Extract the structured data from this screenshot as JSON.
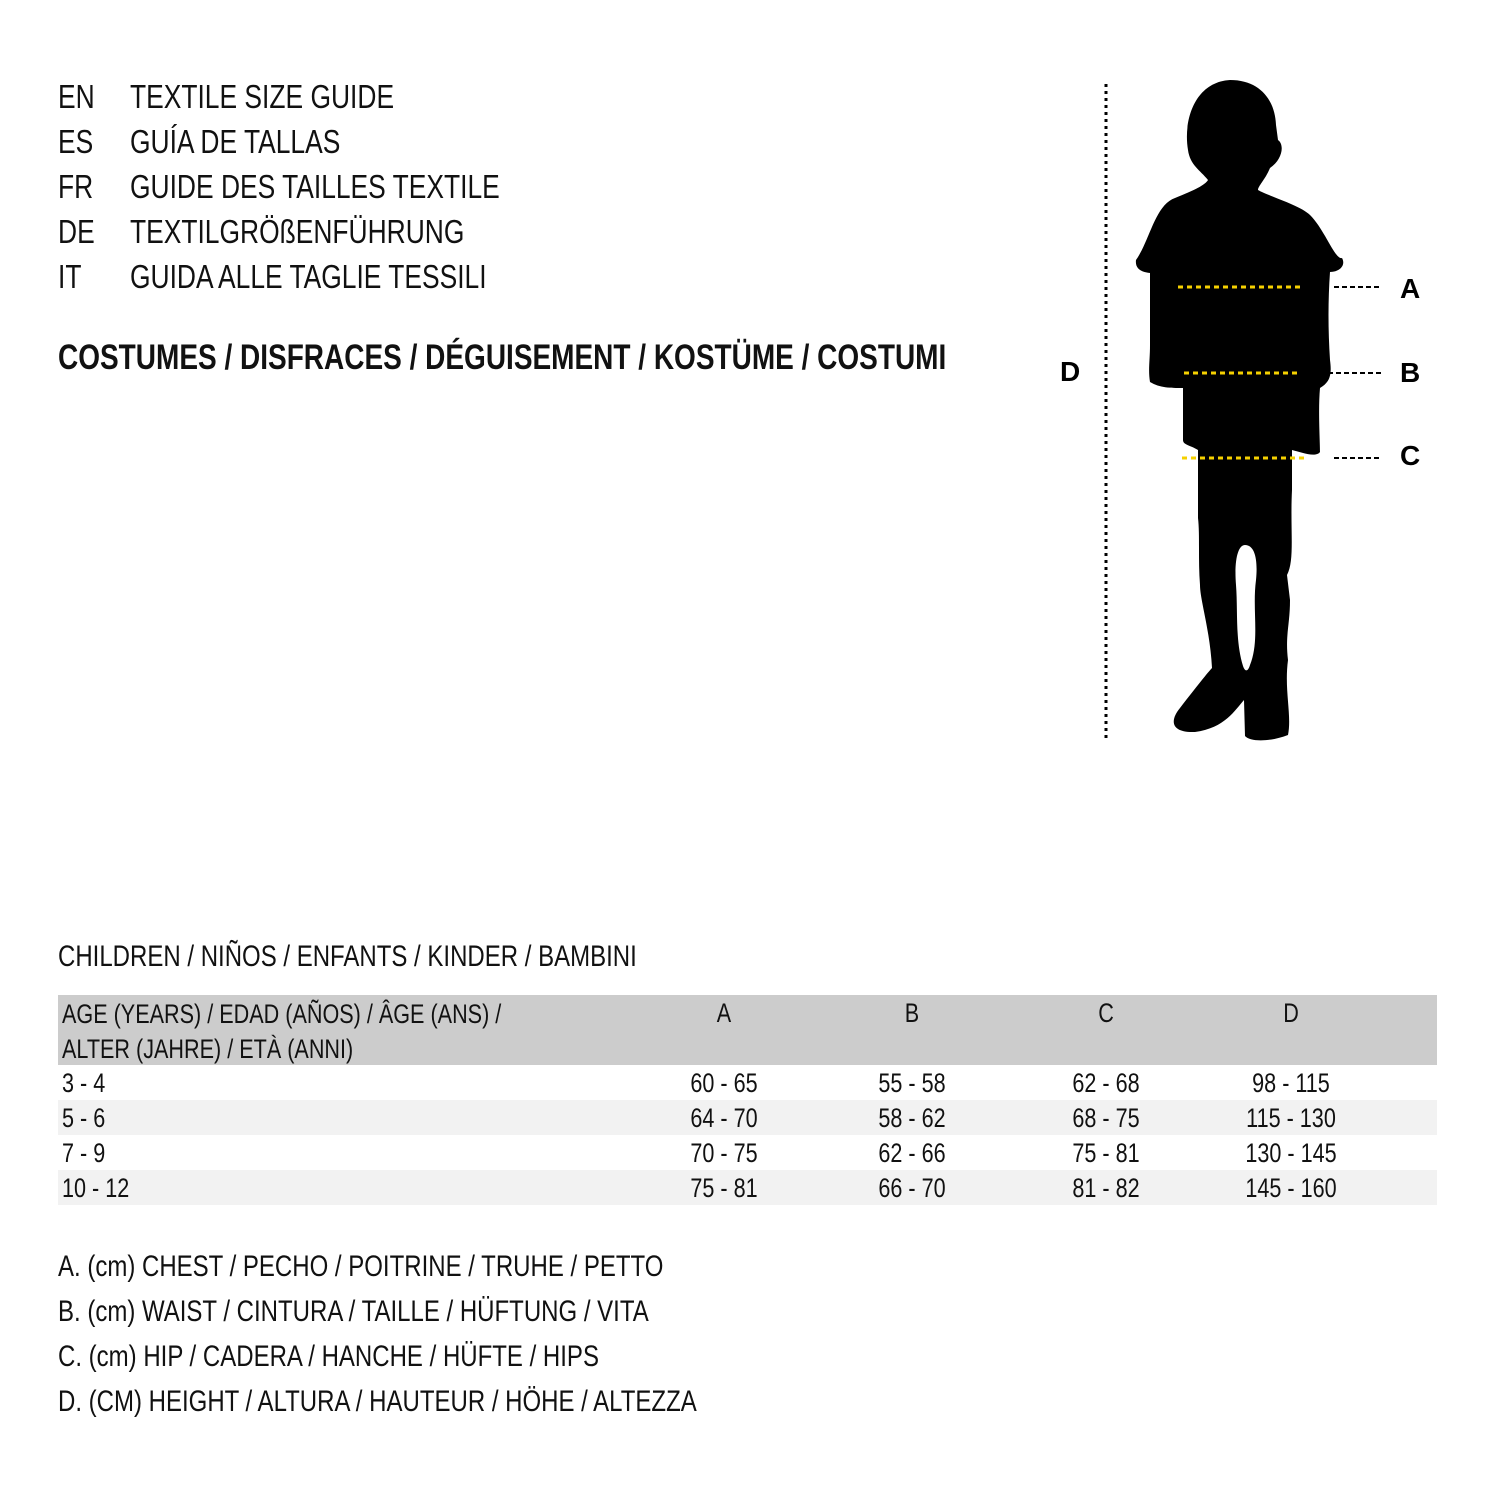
{
  "languages": [
    {
      "code": "EN",
      "text": "TEXTILE SIZE GUIDE"
    },
    {
      "code": "ES",
      "text": "GUÍA DE TALLAS"
    },
    {
      "code": "FR",
      "text": "GUIDE DES TAILLES TEXTILE"
    },
    {
      "code": "DE",
      "text": "TEXTILGRÖßENFÜHRUNG"
    },
    {
      "code": "IT",
      "text": "GUIDA ALLE TAGLIE TESSILI"
    }
  ],
  "category": "COSTUMES / DISFRACES / DÉGUISEMENT / KOSTÜME / COSTUMI",
  "figure": {
    "labels": {
      "a": "A",
      "b": "B",
      "c": "C",
      "d": "D"
    },
    "measure_line_color": "#f5d000",
    "silhouette_color": "#000000"
  },
  "section_title": "CHILDREN / NIÑOS / ENFANTS / KINDER / BAMBINI",
  "table": {
    "header": {
      "age_line1": "AGE (YEARS) / EDAD (AÑOS) / ÂGE (ANS) /",
      "age_line2": "ALTER (JAHRE) / ETÀ (ANNI)",
      "a": "A",
      "b": "B",
      "c": "C",
      "d": "D"
    },
    "header_bg": "#cccccc",
    "rows": [
      {
        "age": "3 - 4",
        "a": "60 - 65",
        "b": "55 - 58",
        "c": "62 - 68",
        "d": "98 - 115"
      },
      {
        "age": "5 - 6",
        "a": "64 - 70",
        "b": "58 - 62",
        "c": "68 - 75",
        "d": "115 - 130"
      },
      {
        "age": "7 - 9",
        "a": "70 - 75",
        "b": "62 - 66",
        "c": "75 - 81",
        "d": "130 - 145"
      },
      {
        "age": "10 - 12",
        "a": "75 - 81",
        "b": "66 - 70",
        "c": "81 - 82",
        "d": "145 - 160"
      }
    ]
  },
  "legend": [
    "A. (cm) CHEST / PECHO / POITRINE / TRUHE / PETTO",
    "B. (cm) WAIST / CINTURA / TAILLE / HÜFTUNG / VITA",
    "C. (cm) HIP / CADERA / HANCHE / HÜFTE / HIPS",
    "D. (CM) HEIGHT / ALTURA / HAUTEUR / HÖHE / ALTEZZA"
  ]
}
